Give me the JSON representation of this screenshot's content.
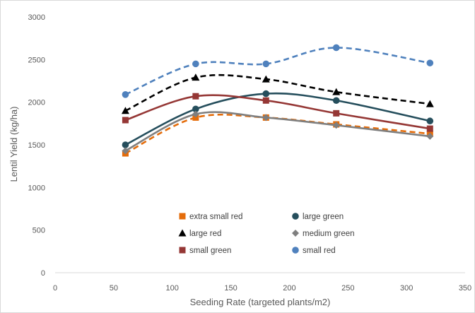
{
  "chart_data": {
    "type": "line",
    "title": "",
    "xlabel": "Seeding Rate (targeted plants/m2)",
    "ylabel": "Lentil Yield (kg/ha)",
    "xlim": [
      0,
      350
    ],
    "ylim": [
      0,
      3000
    ],
    "x_ticks": [
      "0",
      "50",
      "100",
      "150",
      "200",
      "250",
      "300",
      "350"
    ],
    "y_ticks": [
      "0",
      "500",
      "1000",
      "1500",
      "2000",
      "2500",
      "3000"
    ],
    "grid": false,
    "legend_position": "bottom-center",
    "x": [
      60,
      120,
      180,
      240,
      320
    ],
    "series": [
      {
        "name": "extra small red",
        "values": [
          1400,
          1820,
          1820,
          1740,
          1630
        ],
        "color": "#e46c0a",
        "marker": "square",
        "line": "dashed"
      },
      {
        "name": "large green",
        "values": [
          1500,
          1920,
          2100,
          2020,
          1780
        ],
        "color": "#254e5c",
        "marker": "circle",
        "line": "solid"
      },
      {
        "name": "large red",
        "values": [
          1900,
          2290,
          2270,
          2120,
          1980
        ],
        "color": "#000000",
        "marker": "triangle",
        "line": "dashed"
      },
      {
        "name": "medium green",
        "values": [
          1430,
          1860,
          1820,
          1730,
          1600
        ],
        "color": "#7f7f7f",
        "marker": "diamond",
        "line": "solid"
      },
      {
        "name": "small green",
        "values": [
          1790,
          2070,
          2020,
          1870,
          1690
        ],
        "color": "#953735",
        "marker": "square",
        "line": "solid"
      },
      {
        "name": "small red",
        "values": [
          2090,
          2450,
          2450,
          2640,
          2460
        ],
        "color": "#4f81bd",
        "marker": "circle",
        "line": "dashed"
      }
    ]
  }
}
